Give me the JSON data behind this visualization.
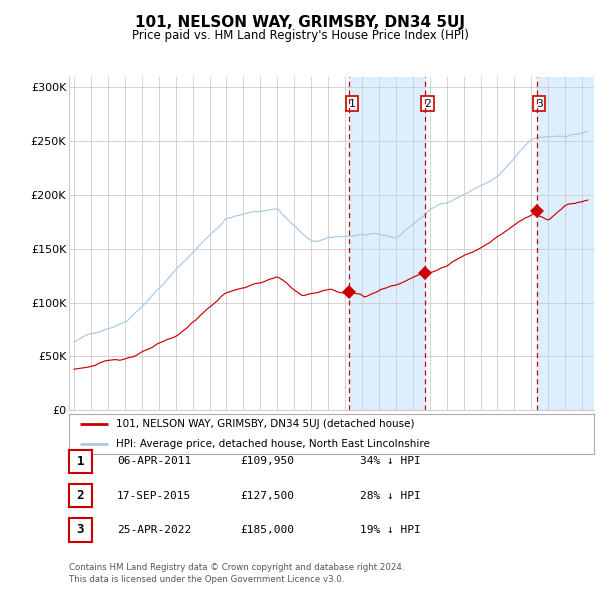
{
  "title": "101, NELSON WAY, GRIMSBY, DN34 5UJ",
  "subtitle": "Price paid vs. HM Land Registry's House Price Index (HPI)",
  "ylabel_ticks": [
    "£0",
    "£50K",
    "£100K",
    "£150K",
    "£200K",
    "£250K",
    "£300K"
  ],
  "ytick_vals": [
    0,
    50000,
    100000,
    150000,
    200000,
    250000,
    300000
  ],
  "ylim": [
    0,
    310000
  ],
  "xlim_start": 1994.7,
  "xlim_end": 2025.7,
  "sale_dates": [
    2011.26,
    2015.71,
    2022.31
  ],
  "sale_prices": [
    109950,
    127500,
    185000
  ],
  "sale_labels": [
    "1",
    "2",
    "3"
  ],
  "sale_info": [
    {
      "label": "1",
      "date": "06-APR-2011",
      "price": "£109,950",
      "pct": "34% ↓ HPI"
    },
    {
      "label": "2",
      "date": "17-SEP-2015",
      "price": "£127,500",
      "pct": "28% ↓ HPI"
    },
    {
      "label": "3",
      "date": "25-APR-2022",
      "price": "£185,000",
      "pct": "19% ↓ HPI"
    }
  ],
  "hpi_color": "#aac8e8",
  "price_color": "#cc0000",
  "shade_color": "#ddeeff",
  "vline_color": "#cc0000",
  "grid_color": "#cccccc",
  "bg_color": "#ffffff",
  "legend_label_red": "101, NELSON WAY, GRIMSBY, DN34 5UJ (detached house)",
  "legend_label_blue": "HPI: Average price, detached house, North East Lincolnshire",
  "footer1": "Contains HM Land Registry data © Crown copyright and database right 2024.",
  "footer2": "This data is licensed under the Open Government Licence v3.0."
}
